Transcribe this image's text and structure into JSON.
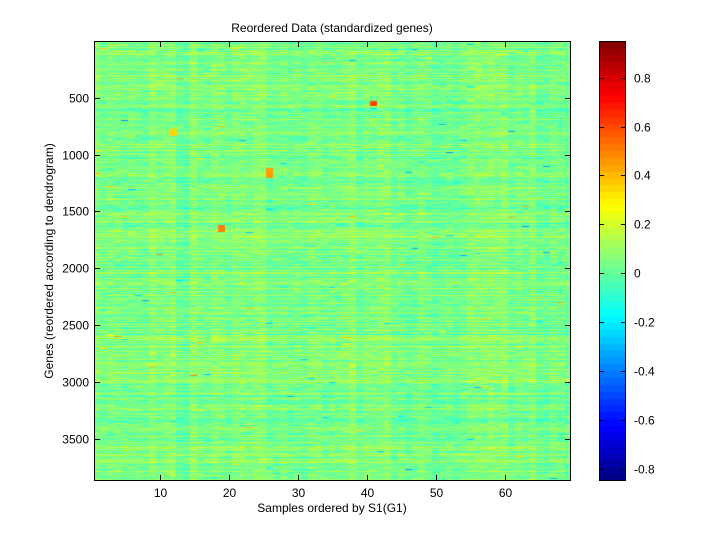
{
  "chart_data": {
    "type": "heatmap",
    "title": "Reordered Data (standardized genes)",
    "xlabel": "Samples ordered by S1(G1)",
    "ylabel": "Genes (reordered according to dendrogram)",
    "xlim": [
      0.5,
      69.5
    ],
    "ylim": [
      1,
      3870
    ],
    "y_reversed": true,
    "n_samples": 69,
    "n_genes": 3870,
    "x_ticks": [
      10,
      20,
      30,
      40,
      50,
      60
    ],
    "y_ticks": [
      500,
      1000,
      1500,
      2000,
      2500,
      3000,
      3500
    ],
    "colormap": "jet",
    "clim": [
      -0.85,
      0.95
    ],
    "colorbar_ticks": [
      0.8,
      0.6,
      0.4,
      0.2,
      0,
      -0.2,
      -0.4,
      -0.6,
      -0.8
    ],
    "grid": false,
    "notable_features": [
      {
        "sample": 26,
        "genes": [
          1120,
          1200
        ],
        "value": 0.45
      },
      {
        "sample": 19,
        "genes": [
          1620,
          1680
        ],
        "value": 0.5
      },
      {
        "sample": 41,
        "genes": [
          530,
          570
        ],
        "value": 0.6
      },
      {
        "sample": 12,
        "genes": [
          780,
          830
        ],
        "value": 0.35
      }
    ]
  }
}
